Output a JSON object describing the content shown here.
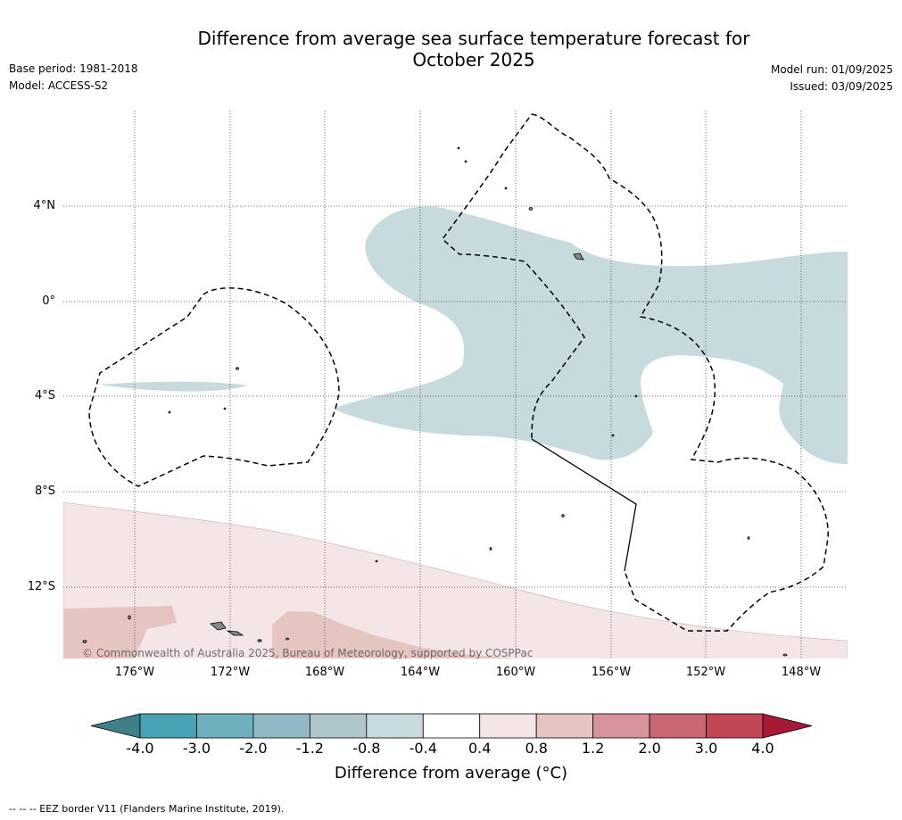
{
  "title": {
    "line1": "Difference from average sea surface temperature forecast for",
    "line2": "October 2025"
  },
  "meta": {
    "base_period": "Base period: 1981-2018",
    "model": "Model: ACCESS-S2",
    "model_run": "Model run: 01/09/2025",
    "issued": "Issued: 03/09/2025"
  },
  "map": {
    "lat_labels": [
      "4°N",
      "0°",
      "4°S",
      "8°S",
      "12°S"
    ],
    "lon_labels": [
      "176°W",
      "172°W",
      "168°W",
      "164°W",
      "160°W",
      "156°W",
      "152°W",
      "148°W"
    ],
    "copyright": "© Commonwealth of Australia 2025, Bureau of Meteorology, supported by COSPPac",
    "anomaly_colors": {
      "neg_0_4_to_0_8": "#c7dadd",
      "pos_0_4_to_0_8": "#f4e6e6",
      "pos_0_8_to_1_2": "#e6c5c1"
    }
  },
  "colorbar": {
    "ticks": [
      "-4.0",
      "-3.0",
      "-2.0",
      "-1.2",
      "-0.8",
      "-0.4",
      "0.4",
      "0.8",
      "1.2",
      "2.0",
      "3.0",
      "4.0"
    ],
    "colors": [
      "#3f7f87",
      "#4aa3b4",
      "#6eb0be",
      "#8fbac4",
      "#afc7cb",
      "#c7dadd",
      "#ffffff",
      "#f4e6e6",
      "#e6c5c1",
      "#d6949a",
      "#c96872",
      "#c24755",
      "#a81837"
    ],
    "label": "Difference from average (°C)"
  },
  "footer": "--  --  -- EEZ border V11 (Flanders Marine Institute, 2019)."
}
